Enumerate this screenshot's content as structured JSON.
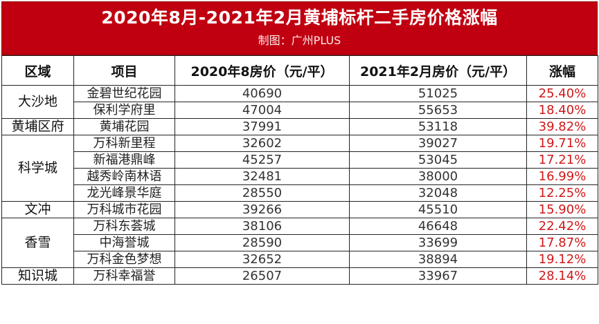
{
  "header": {
    "title": "2020年8月-2021年2月黄埔标杆二手房价格涨幅",
    "subtitle": "制图：广州PLUS"
  },
  "colors": {
    "banner": "#c00010",
    "increase_text": "#d01818"
  },
  "table": {
    "columns": [
      "区域",
      "项目",
      "2020年8房价（元/平）",
      "2021年2月房价（元/平）",
      "涨幅"
    ],
    "districts": [
      {
        "name": "大沙地",
        "rows": [
          {
            "project": "金碧世纪花园",
            "price_2020_08": "40690",
            "price_2021_02": "51025",
            "increase": "25.40%"
          },
          {
            "project": "保利学府里",
            "price_2020_08": "47004",
            "price_2021_02": "55653",
            "increase": "18.40%"
          }
        ]
      },
      {
        "name": "黄埔区府",
        "rows": [
          {
            "project": "黄埔花园",
            "price_2020_08": "37991",
            "price_2021_02": "53118",
            "increase": "39.82%"
          }
        ]
      },
      {
        "name": "科学城",
        "rows": [
          {
            "project": "万科新里程",
            "price_2020_08": "32602",
            "price_2021_02": "39027",
            "increase": "19.71%"
          },
          {
            "project": "新福港鼎峰",
            "price_2020_08": "45257",
            "price_2021_02": "53045",
            "increase": "17.21%"
          },
          {
            "project": "越秀岭南林语",
            "price_2020_08": "32481",
            "price_2021_02": "38000",
            "increase": "16.99%"
          },
          {
            "project": "龙光峰景华庭",
            "price_2020_08": "28550",
            "price_2021_02": "32048",
            "increase": "12.25%"
          }
        ]
      },
      {
        "name": "文冲",
        "rows": [
          {
            "project": "万科城市花园",
            "price_2020_08": "39266",
            "price_2021_02": "45510",
            "increase": "15.90%"
          }
        ]
      },
      {
        "name": "香雪",
        "rows": [
          {
            "project": "万科东荟城",
            "price_2020_08": "38106",
            "price_2021_02": "46648",
            "increase": "22.42%"
          },
          {
            "project": "中海誉城",
            "price_2020_08": "28590",
            "price_2021_02": "33699",
            "increase": "17.87%"
          },
          {
            "project": "万科金色梦想",
            "price_2020_08": "32652",
            "price_2021_02": "38894",
            "increase": "19.12%"
          }
        ]
      },
      {
        "name": "知识城",
        "rows": [
          {
            "project": "万科幸福誉",
            "price_2020_08": "26507",
            "price_2021_02": "33967",
            "increase": "28.14%"
          }
        ]
      }
    ]
  }
}
